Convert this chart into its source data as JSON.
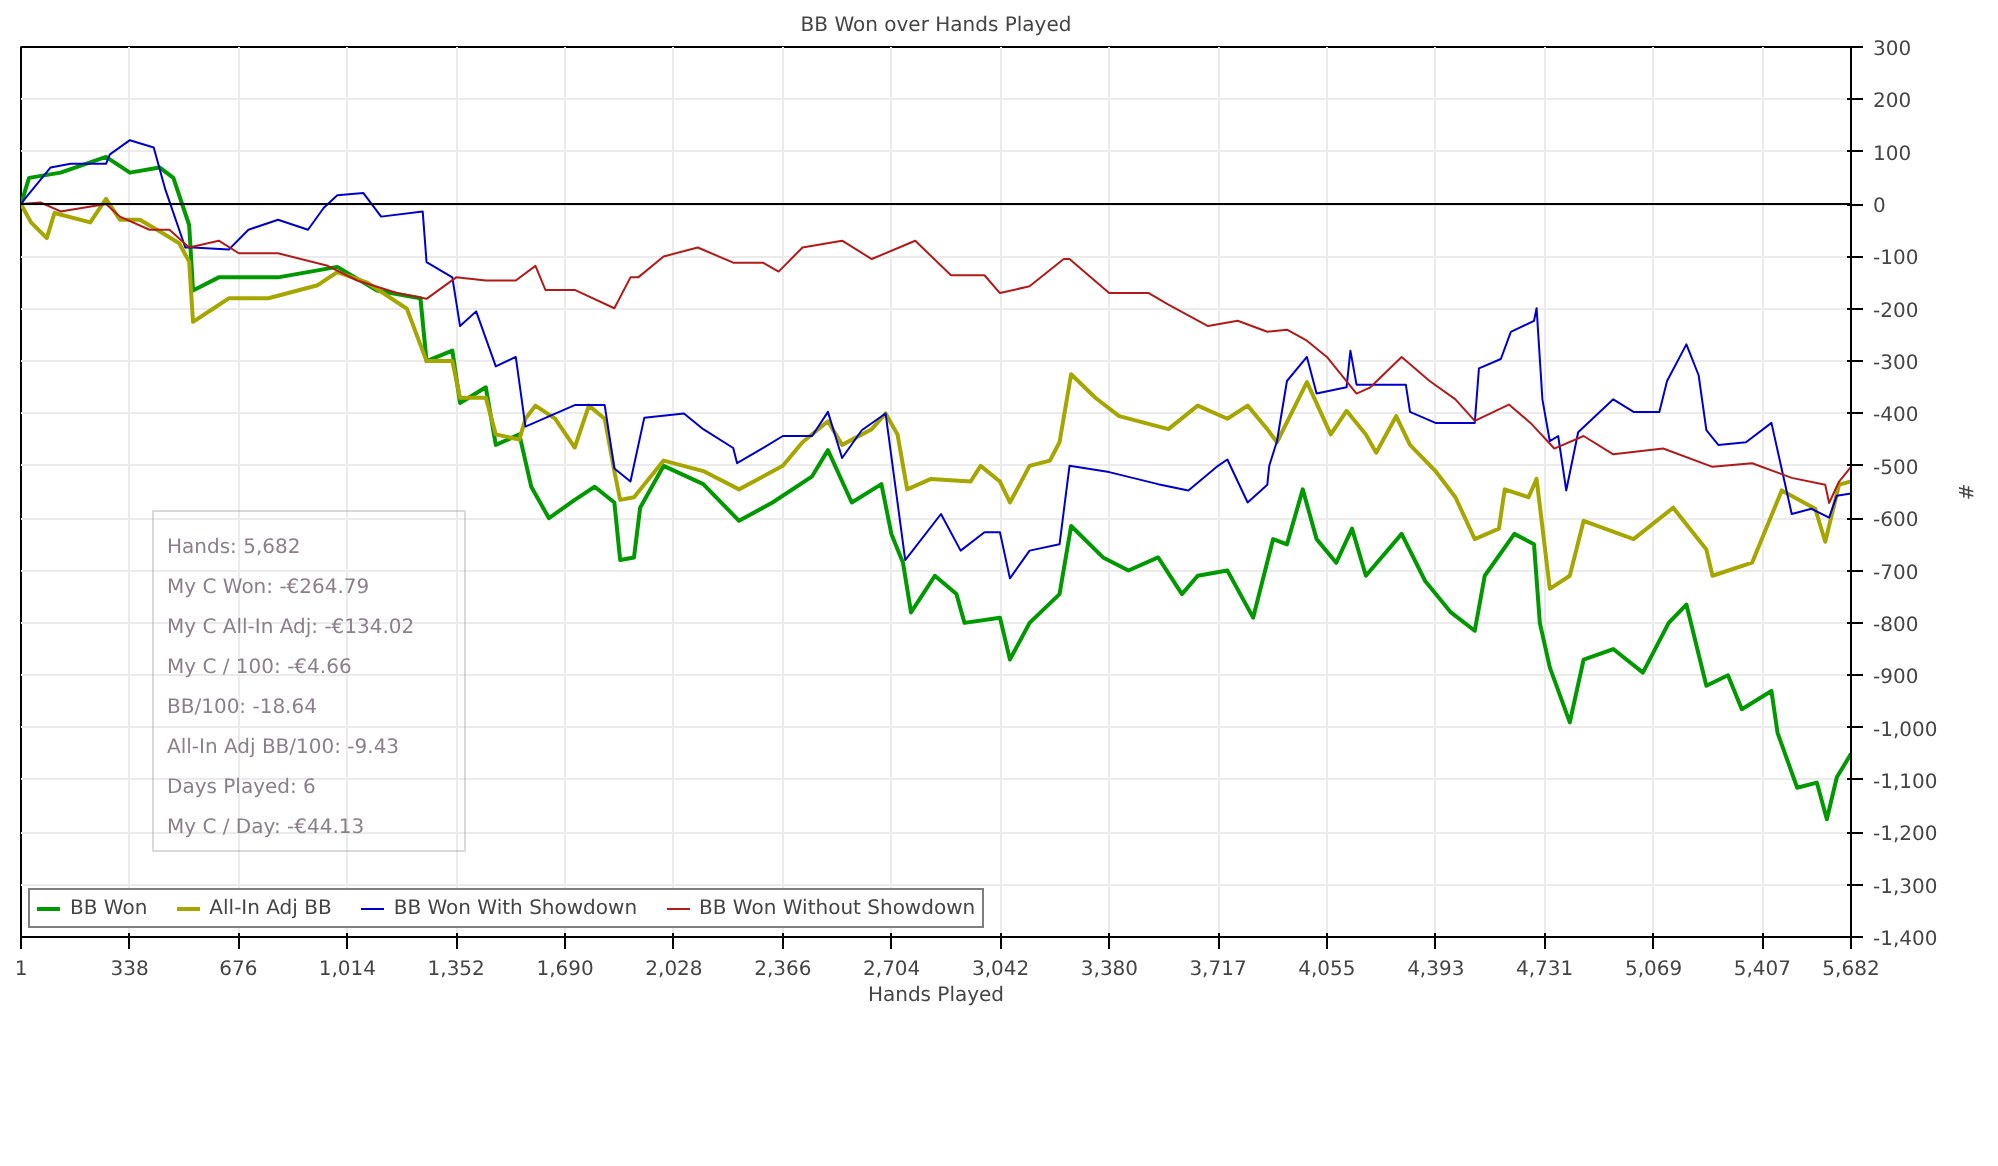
{
  "chart_data": {
    "type": "line",
    "title": "BB Won over Hands Played",
    "xlabel": "Hands Played",
    "ylabel": "#",
    "series": [
      {
        "name": "BB Won",
        "color": "#009900",
        "x": [
          1,
          26,
          124,
          265,
          339,
          431,
          474,
          523,
          535,
          615,
          799,
          983,
          1106,
          1241,
          1260,
          1340,
          1364,
          1444,
          1475,
          1548,
          1585,
          1640,
          1720,
          1782,
          1843,
          1861,
          1904,
          1923,
          1996,
          2119,
          2230,
          2334,
          2457,
          2506,
          2580,
          2672,
          2703,
          2739,
          2764,
          2838,
          2905,
          2930,
          3040,
          3071,
          3132,
          3225,
          3261,
          3360,
          3439,
          3531,
          3605,
          3654,
          3746,
          3826,
          3888,
          3931,
          3980,
          4023,
          4084,
          4133,
          4176,
          4287,
          4360,
          4440,
          4514,
          4545,
          4637,
          4698,
          4716,
          4747,
          4809,
          4852,
          4944,
          5036,
          5116,
          5171,
          5233,
          5300,
          5343,
          5435,
          5454,
          5515,
          5576,
          5607,
          5638,
          5682
        ],
        "values": [
          0,
          50,
          60,
          90,
          60,
          70,
          50,
          -40,
          -165,
          -140,
          -140,
          -120,
          -165,
          -180,
          -300,
          -280,
          -380,
          -350,
          -460,
          -440,
          -540,
          -600,
          -565,
          -540,
          -570,
          -680,
          -675,
          -580,
          -500,
          -535,
          -605,
          -570,
          -520,
          -470,
          -570,
          -535,
          -630,
          -685,
          -780,
          -710,
          -745,
          -800,
          -790,
          -870,
          -800,
          -745,
          -615,
          -675,
          -700,
          -675,
          -745,
          -710,
          -700,
          -790,
          -640,
          -650,
          -545,
          -640,
          -685,
          -620,
          -710,
          -630,
          -720,
          -780,
          -815,
          -710,
          -630,
          -650,
          -800,
          -885,
          -990,
          -870,
          -850,
          -895,
          -800,
          -765,
          -920,
          -900,
          -965,
          -930,
          -1010,
          -1115,
          -1105,
          -1175,
          -1095,
          -1050
        ]
      },
      {
        "name": "All-In Adj BB",
        "color": "#a6a600",
        "x": [
          1,
          32,
          81,
          105,
          216,
          265,
          308,
          370,
          431,
          492,
          523,
          535,
          597,
          646,
          769,
          922,
          983,
          1076,
          1199,
          1260,
          1340,
          1364,
          1444,
          1475,
          1548,
          1567,
          1598,
          1659,
          1720,
          1764,
          1813,
          1843,
          1861,
          1904,
          1996,
          2119,
          2230,
          2366,
          2427,
          2506,
          2550,
          2642,
          2685,
          2722,
          2752,
          2826,
          2949,
          2980,
          3040,
          3071,
          3132,
          3195,
          3225,
          3261,
          3336,
          3410,
          3563,
          3654,
          3746,
          3809,
          3870,
          3900,
          3993,
          4067,
          4116,
          4176,
          4208,
          4270,
          4313,
          4392,
          4454,
          4514,
          4589,
          4607,
          4681,
          4706,
          4747,
          4809,
          4852,
          5007,
          5130,
          5233,
          5252,
          5375,
          5467,
          5571,
          5602,
          5645,
          5682
        ],
        "values": [
          0,
          -35,
          -65,
          -17,
          -35,
          10,
          -30,
          -30,
          -52,
          -75,
          -110,
          -225,
          -200,
          -180,
          -180,
          -155,
          -130,
          -150,
          -200,
          -300,
          -300,
          -370,
          -370,
          -440,
          -450,
          -410,
          -385,
          -410,
          -465,
          -385,
          -410,
          -510,
          -565,
          -560,
          -490,
          -510,
          -545,
          -500,
          -455,
          -415,
          -460,
          -430,
          -400,
          -440,
          -545,
          -525,
          -530,
          -500,
          -530,
          -570,
          -500,
          -490,
          -455,
          -325,
          -370,
          -405,
          -430,
          -385,
          -410,
          -385,
          -430,
          -455,
          -340,
          -440,
          -395,
          -440,
          -475,
          -405,
          -460,
          -510,
          -560,
          -640,
          -620,
          -545,
          -560,
          -525,
          -735,
          -710,
          -605,
          -640,
          -580,
          -660,
          -710,
          -685,
          -547,
          -582,
          -645,
          -536,
          -530
        ]
      },
      {
        "name": "BB Won With Showdown",
        "color": "#0000cc",
        "x": [
          1,
          13,
          93,
          155,
          265,
          277,
          339,
          413,
          449,
          511,
          535,
          646,
          707,
          799,
          892,
          941,
          983,
          1064,
          1119,
          1248,
          1260,
          1340,
          1364,
          1414,
          1475,
          1537,
          1567,
          1720,
          1813,
          1843,
          1893,
          1936,
          2059,
          2119,
          2212,
          2224,
          2304,
          2366,
          2457,
          2506,
          2550,
          2611,
          2685,
          2746,
          2857,
          2918,
          2992,
          3040,
          3071,
          3132,
          3225,
          3256,
          3379,
          3531,
          3625,
          3717,
          3746,
          3809,
          3870,
          3876,
          3900,
          3931,
          3993,
          4023,
          4116,
          4128,
          4147,
          4300,
          4313,
          4392,
          4514,
          4527,
          4595,
          4626,
          4698,
          4706,
          4724,
          4747,
          4773,
          4798,
          4835,
          4944,
          5007,
          5087,
          5111,
          5171,
          5209,
          5233,
          5270,
          5356,
          5435,
          5498,
          5559,
          5614,
          5638,
          5682
        ],
        "values": [
          0,
          10,
          70,
          77,
          77,
          95,
          122,
          108,
          28,
          -83,
          -83,
          -87,
          -49,
          -30,
          -49,
          -7,
          17,
          21,
          -24,
          -14,
          -111,
          -140,
          -233,
          -205,
          -310,
          -292,
          -425,
          -384,
          -384,
          -505,
          -530,
          -408,
          -400,
          -430,
          -466,
          -495,
          -466,
          -443,
          -443,
          -397,
          -485,
          -432,
          -400,
          -680,
          -592,
          -662,
          -627,
          -627,
          -715,
          -662,
          -650,
          -500,
          -512,
          -535,
          -547,
          -500,
          -488,
          -570,
          -536,
          -500,
          -453,
          -338,
          -292,
          -362,
          -350,
          -280,
          -345,
          -345,
          -397,
          -418,
          -418,
          -314,
          -296,
          -244,
          -223,
          -199,
          -373,
          -453,
          -443,
          -547,
          -436,
          -373,
          -397,
          -397,
          -338,
          -268,
          -327,
          -432,
          -460,
          -455,
          -418,
          -592,
          -582,
          -599,
          -557,
          -553
        ]
      },
      {
        "name": "BB Won Without Showdown",
        "color": "#b21a1a",
        "x": [
          1,
          62,
          124,
          265,
          308,
          400,
          462,
          523,
          615,
          677,
          799,
          953,
          1045,
          1168,
          1260,
          1352,
          1444,
          1537,
          1598,
          1629,
          1720,
          1843,
          1893,
          1917,
          1996,
          2102,
          2212,
          2304,
          2353,
          2427,
          2550,
          2642,
          2777,
          2888,
          2992,
          3040,
          3132,
          3238,
          3256,
          3379,
          3502,
          3563,
          3686,
          3778,
          3870,
          3931,
          3993,
          4055,
          4147,
          4190,
          4287,
          4374,
          4454,
          4514,
          4620,
          4687,
          4761,
          4852,
          4944,
          5099,
          5252,
          5375,
          5498,
          5602,
          5614,
          5645,
          5682
        ],
        "values": [
          0,
          3,
          -14,
          0,
          -24,
          -49,
          -49,
          -83,
          -70,
          -94,
          -94,
          -118,
          -146,
          -170,
          -181,
          -140,
          -146,
          -146,
          -118,
          -164,
          -164,
          -199,
          -140,
          -140,
          -100,
          -83,
          -112,
          -112,
          -129,
          -83,
          -70,
          -105,
          -70,
          -136,
          -136,
          -170,
          -157,
          -105,
          -105,
          -170,
          -170,
          -192,
          -233,
          -223,
          -244,
          -240,
          -261,
          -292,
          -362,
          -350,
          -292,
          -338,
          -373,
          -414,
          -383,
          -418,
          -467,
          -443,
          -478,
          -467,
          -502,
          -495,
          -523,
          -536,
          -571,
          -530,
          -502
        ]
      }
    ],
    "xlim": [
      1,
      5682
    ],
    "xticks": [
      1,
      338,
      676,
      {
        "value": 1014,
        "label": "1,014"
      },
      {
        "value": 1352,
        "label": "1,352"
      },
      {
        "value": 1690,
        "label": "1,690"
      },
      {
        "value": 2028,
        "label": "2,028"
      },
      {
        "value": 2366,
        "label": "2,366"
      },
      {
        "value": 2704,
        "label": "2,704"
      },
      {
        "value": 3042,
        "label": "3,042"
      },
      {
        "value": 3380,
        "label": "3,380"
      },
      {
        "value": 3717,
        "label": "3,717"
      },
      {
        "value": 4055,
        "label": "4,055"
      },
      {
        "value": 4393,
        "label": "4,393"
      },
      {
        "value": 4731,
        "label": "4,731"
      },
      {
        "value": 5069,
        "label": "5,069"
      },
      {
        "value": 5407,
        "label": "5,407"
      },
      {
        "value": 5682,
        "label": "5,682"
      }
    ],
    "ylim": [
      -1400,
      300
    ],
    "yticks": [
      300,
      200,
      100,
      0,
      -100,
      -200,
      -300,
      -400,
      -500,
      -600,
      -700,
      -800,
      -900,
      {
        "value": -1000,
        "label": "-1,000"
      },
      {
        "value": -1100,
        "label": "-1,100"
      },
      {
        "value": -1200,
        "label": "-1,200"
      },
      {
        "value": -1300,
        "label": "-1,300"
      },
      {
        "value": -1400,
        "label": "-1,400"
      }
    ],
    "ref_lines": [
      {
        "axis": "y",
        "value": 0,
        "color": "#000000"
      }
    ],
    "annotations": [
      "Hands: 5,682",
      "My C Won: -€264.79",
      "My C All-In Adj: -€134.02",
      "My C / 100: -€4.66",
      "BB/100: -18.64",
      "All-In Adj BB/100: -9.43",
      "Days Played: 6",
      "My C / Day: -€44.13"
    ],
    "grid": true,
    "legend": "bottom",
    "line_style": "solid"
  }
}
